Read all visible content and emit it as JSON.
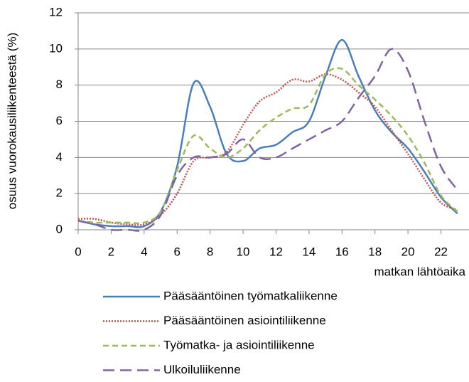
{
  "chart_data": {
    "type": "line",
    "y_label": "osuus vuorokausiliikenteestä (%)",
    "x_label": "matkan lähtöaika",
    "x": [
      0,
      1,
      2,
      3,
      4,
      5,
      6,
      7,
      8,
      9,
      10,
      11,
      12,
      13,
      14,
      15,
      16,
      17,
      18,
      19,
      20,
      21,
      22,
      23
    ],
    "xlim": [
      0,
      23.7
    ],
    "xticks": [
      0,
      2,
      4,
      6,
      8,
      10,
      12,
      14,
      16,
      18,
      20,
      22
    ],
    "ylim": [
      0,
      12
    ],
    "yticks": [
      0,
      2,
      4,
      6,
      8,
      10,
      12
    ],
    "grid": true,
    "legend": "bottom",
    "series": [
      {
        "name": "Pääsääntöinen työmatkaliikenne",
        "color": "#4a7ebb",
        "style": "solid",
        "values": [
          0.5,
          0.3,
          0.2,
          0.2,
          0.2,
          1.0,
          3.5,
          8.1,
          6.8,
          4.2,
          3.8,
          4.5,
          4.7,
          5.4,
          6.0,
          8.5,
          10.5,
          8.5,
          6.6,
          5.4,
          4.5,
          3.2,
          1.8,
          0.9
        ]
      },
      {
        "name": "Pääsääntöinen asiointiliikenne",
        "color": "#c0504d",
        "style": "dotted",
        "values": [
          0.6,
          0.6,
          0.4,
          0.3,
          0.3,
          0.8,
          2.0,
          3.8,
          4.0,
          4.3,
          5.8,
          7.1,
          7.6,
          8.3,
          8.2,
          8.6,
          8.3,
          7.6,
          6.8,
          5.5,
          4.2,
          2.8,
          1.5,
          1.1
        ]
      },
      {
        "name": "Työmatka- ja asiointiliikenne",
        "color": "#9bbb59",
        "style": "dashed",
        "values": [
          0.5,
          0.4,
          0.4,
          0.4,
          0.4,
          1.0,
          3.3,
          5.2,
          4.5,
          4.0,
          4.5,
          5.5,
          6.2,
          6.7,
          6.9,
          8.6,
          8.9,
          8.0,
          7.2,
          6.3,
          5.2,
          3.7,
          1.9,
          1.0
        ]
      },
      {
        "name": "Ulkoiluliikenne",
        "color": "#8064a2",
        "style": "longdash",
        "values": [
          0.5,
          0.3,
          0,
          0,
          0,
          0.8,
          3.0,
          4.0,
          4.0,
          4.2,
          5.0,
          4.0,
          4.0,
          4.5,
          5.0,
          5.5,
          6.0,
          7.3,
          8.5,
          10.0,
          8.8,
          6.0,
          3.5,
          2.2
        ]
      }
    ]
  }
}
